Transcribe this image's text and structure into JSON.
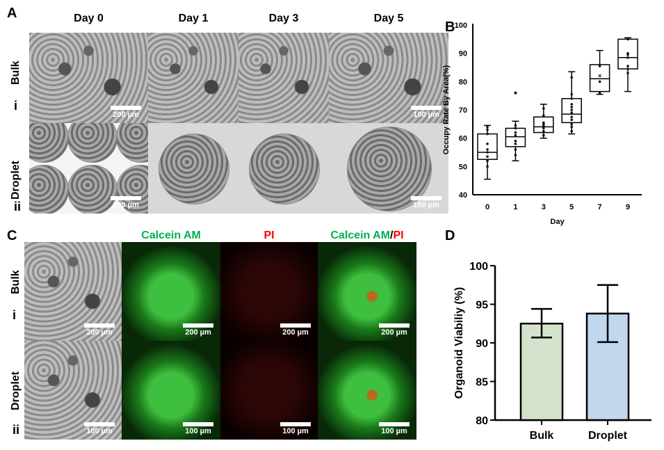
{
  "panelA": {
    "label": "A",
    "columns": [
      "Day 0",
      "Day 1",
      "Day 3",
      "Day 5"
    ],
    "rows": [
      {
        "name": "Bulk",
        "roman": "i"
      },
      {
        "name": "Droplet",
        "roman": "ii"
      }
    ],
    "scalebars": [
      [
        "200 µm",
        "",
        "",
        "100 µm"
      ],
      [
        "200 µm",
        "",
        "",
        "100 µm"
      ]
    ]
  },
  "panelC": {
    "label": "C",
    "columns": [
      "",
      "Calcein AM",
      "PI",
      "Calcein AM/PI"
    ],
    "merge_title": {
      "a": "Calcein AM",
      "sep": "/",
      "b": "PI"
    },
    "rows": [
      {
        "name": "Bulk",
        "roman": "i"
      },
      {
        "name": "Droplet",
        "roman": "ii"
      }
    ],
    "scalebars": [
      [
        "200 µm",
        "200 µm",
        "200 µm",
        "200 µm"
      ],
      [
        "100 µm",
        "100 µm",
        "100 µm",
        "100 µm"
      ]
    ],
    "colors": {
      "calcein": "#00b050",
      "pi": "#ff0000"
    }
  },
  "chart_data": [
    {
      "panel": "B",
      "type": "box",
      "xlabel": "Day",
      "ylabel": "Occupy Rate By Area(%)",
      "ylim": [
        40,
        100
      ],
      "yticks": [
        40,
        50,
        60,
        70,
        80,
        90,
        100
      ],
      "categories": [
        "0",
        "1",
        "3",
        "5",
        "7",
        "9"
      ],
      "boxes": [
        {
          "min": 45.5,
          "q1": 52.5,
          "median": 55,
          "q3": 61.5,
          "max": 64.5,
          "points": [
            50,
            52,
            53.5,
            55,
            56,
            58,
            61.5,
            63,
            64
          ]
        },
        {
          "min": 52,
          "q1": 57,
          "median": 60.5,
          "q3": 63.5,
          "max": 66,
          "outliers": [
            76
          ],
          "points": [
            54,
            56,
            58,
            59,
            61,
            62,
            63.5,
            64.5
          ]
        },
        {
          "min": 60,
          "q1": 62,
          "median": 64,
          "q3": 67.5,
          "max": 72,
          "points": [
            61,
            62.5,
            63.5,
            64.5,
            65,
            65.5,
            68,
            70.5
          ]
        },
        {
          "min": 61.5,
          "q1": 65.5,
          "median": 68.5,
          "q3": 74,
          "max": 83.5,
          "points": [
            62.5,
            64,
            65,
            66.5,
            67.5,
            69,
            70,
            71,
            72,
            74,
            75.5,
            81.5
          ]
        },
        {
          "min": 75.5,
          "q1": 76.5,
          "median": 81,
          "q3": 86,
          "max": 91,
          "mean": 82,
          "points": [
            76,
            80,
            85.5
          ]
        },
        {
          "min": 76.5,
          "q1": 84.5,
          "median": 88.5,
          "q3": 95,
          "max": 95.5,
          "points": [
            83,
            84.5,
            85.5,
            88.5,
            89.5,
            90,
            95
          ]
        }
      ]
    },
    {
      "panel": "D",
      "type": "bar",
      "ylabel": "Organoid Viabiliy (%)",
      "ylim": [
        80,
        100
      ],
      "yticks": [
        80,
        85,
        90,
        95,
        100
      ],
      "categories": [
        "Bulk",
        "Droplet"
      ],
      "values": [
        92.5,
        93.8
      ],
      "error_low": [
        90.7,
        90.1
      ],
      "error_high": [
        94.4,
        97.5
      ],
      "colors": [
        "#d5e3cc",
        "#c2d6ee"
      ]
    }
  ]
}
